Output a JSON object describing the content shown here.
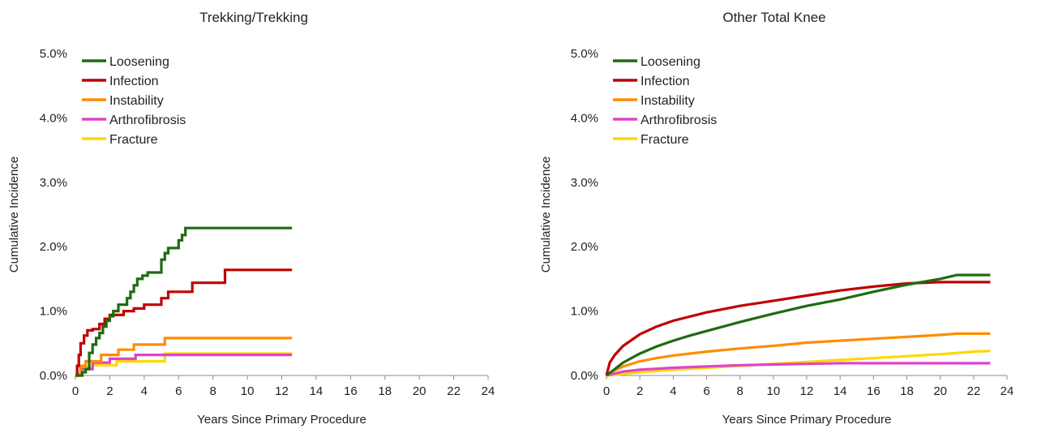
{
  "chart_data": [
    {
      "type": "line",
      "title": "Trekking/Trekking",
      "xlabel": "Years Since Primary Procedure",
      "ylabel": "Cumulative Incidence",
      "xlim": [
        0,
        24
      ],
      "ylim": [
        0,
        5
      ],
      "xticks": [
        "0",
        "2",
        "4",
        "6",
        "8",
        "10",
        "12",
        "14",
        "16",
        "18",
        "20",
        "22",
        "24"
      ],
      "yticks": [
        "0.0%",
        "1.0%",
        "2.0%",
        "3.0%",
        "4.0%",
        "5.0%"
      ],
      "legend_position": "top-left",
      "grid": false,
      "step": true,
      "series": [
        {
          "name": "Loosening",
          "color": "#1e6b10",
          "x": [
            0,
            0.4,
            0.6,
            0.8,
            1.0,
            1.2,
            1.4,
            1.6,
            1.8,
            2.0,
            2.2,
            2.5,
            3.0,
            3.2,
            3.4,
            3.6,
            3.9,
            4.2,
            5.0,
            5.2,
            5.4,
            6.0,
            6.2,
            6.4,
            12.6
          ],
          "y": [
            0,
            0.05,
            0.1,
            0.35,
            0.48,
            0.58,
            0.66,
            0.76,
            0.85,
            0.92,
            1.0,
            1.1,
            1.2,
            1.3,
            1.4,
            1.5,
            1.55,
            1.6,
            1.8,
            1.9,
            1.98,
            2.1,
            2.18,
            2.29,
            2.29
          ]
        },
        {
          "name": "Infection",
          "color": "#c00000",
          "x": [
            0,
            0.1,
            0.2,
            0.3,
            0.5,
            0.7,
            1.0,
            1.4,
            1.7,
            2.0,
            2.8,
            3.4,
            4.0,
            5.0,
            5.4,
            6.8,
            8.7,
            12.6
          ],
          "y": [
            0,
            0.15,
            0.32,
            0.5,
            0.62,
            0.7,
            0.72,
            0.8,
            0.88,
            0.94,
            1.0,
            1.04,
            1.1,
            1.2,
            1.3,
            1.44,
            1.64,
            1.64
          ]
        },
        {
          "name": "Instability",
          "color": "#ff8c00",
          "x": [
            0,
            0.3,
            0.6,
            1.5,
            2.5,
            3.4,
            5.2,
            12.6
          ],
          "y": [
            0,
            0.15,
            0.22,
            0.32,
            0.4,
            0.48,
            0.58,
            0.58
          ]
        },
        {
          "name": "Arthrofibrosis",
          "color": "#dd44cc",
          "x": [
            0,
            0.3,
            1.0,
            2.0,
            3.5,
            12.6
          ],
          "y": [
            0,
            0.1,
            0.2,
            0.26,
            0.32,
            0.32
          ]
        },
        {
          "name": "Fracture",
          "color": "#ffd700",
          "x": [
            0,
            0.1,
            0.4,
            1.0,
            2.4,
            5.2,
            12.6
          ],
          "y": [
            0,
            0.03,
            0.12,
            0.16,
            0.22,
            0.34,
            0.34
          ]
        }
      ]
    },
    {
      "type": "line",
      "title": "Other Total Knee",
      "xlabel": "Years Since Primary Procedure",
      "ylabel": "Cumulative Incidence",
      "xlim": [
        0,
        24
      ],
      "ylim": [
        0,
        5
      ],
      "xticks": [
        "0",
        "2",
        "4",
        "6",
        "8",
        "10",
        "12",
        "14",
        "16",
        "18",
        "20",
        "22",
        "24"
      ],
      "yticks": [
        "0.0%",
        "1.0%",
        "2.0%",
        "3.0%",
        "4.0%",
        "5.0%"
      ],
      "legend_position": "top-left",
      "grid": false,
      "step": false,
      "series": [
        {
          "name": "Loosening",
          "color": "#1e6b10",
          "x": [
            0,
            0.5,
            1,
            2,
            3,
            4,
            5,
            6,
            8,
            10,
            12,
            14,
            16,
            18,
            20,
            21,
            23
          ],
          "y": [
            0,
            0.1,
            0.2,
            0.34,
            0.45,
            0.54,
            0.62,
            0.69,
            0.83,
            0.96,
            1.08,
            1.18,
            1.3,
            1.41,
            1.5,
            1.56,
            1.56
          ]
        },
        {
          "name": "Infection",
          "color": "#c00000",
          "x": [
            0,
            0.2,
            0.5,
            1,
            2,
            3,
            4,
            6,
            8,
            10,
            12,
            14,
            16,
            18,
            20,
            23
          ],
          "y": [
            0,
            0.2,
            0.32,
            0.46,
            0.64,
            0.76,
            0.85,
            0.98,
            1.08,
            1.16,
            1.24,
            1.32,
            1.38,
            1.43,
            1.45,
            1.45
          ]
        },
        {
          "name": "Instability",
          "color": "#ff8c00",
          "x": [
            0,
            0.5,
            1,
            2,
            3,
            4,
            6,
            8,
            10,
            12,
            14,
            16,
            18,
            20,
            21,
            23
          ],
          "y": [
            0,
            0.08,
            0.14,
            0.22,
            0.27,
            0.31,
            0.37,
            0.42,
            0.46,
            0.51,
            0.54,
            0.57,
            0.6,
            0.63,
            0.65,
            0.65
          ]
        },
        {
          "name": "Arthrofibrosis",
          "color": "#dd44cc",
          "x": [
            0,
            1,
            2,
            4,
            6,
            8,
            10,
            12,
            14,
            16,
            18,
            20,
            23
          ],
          "y": [
            0,
            0.06,
            0.09,
            0.12,
            0.14,
            0.16,
            0.17,
            0.18,
            0.19,
            0.19,
            0.19,
            0.19,
            0.19
          ]
        },
        {
          "name": "Fracture",
          "color": "#ffd700",
          "x": [
            0,
            2,
            4,
            6,
            8,
            10,
            12,
            14,
            16,
            18,
            20,
            22,
            23
          ],
          "y": [
            0,
            0.05,
            0.09,
            0.12,
            0.15,
            0.18,
            0.21,
            0.24,
            0.27,
            0.3,
            0.33,
            0.37,
            0.38
          ]
        }
      ]
    }
  ]
}
